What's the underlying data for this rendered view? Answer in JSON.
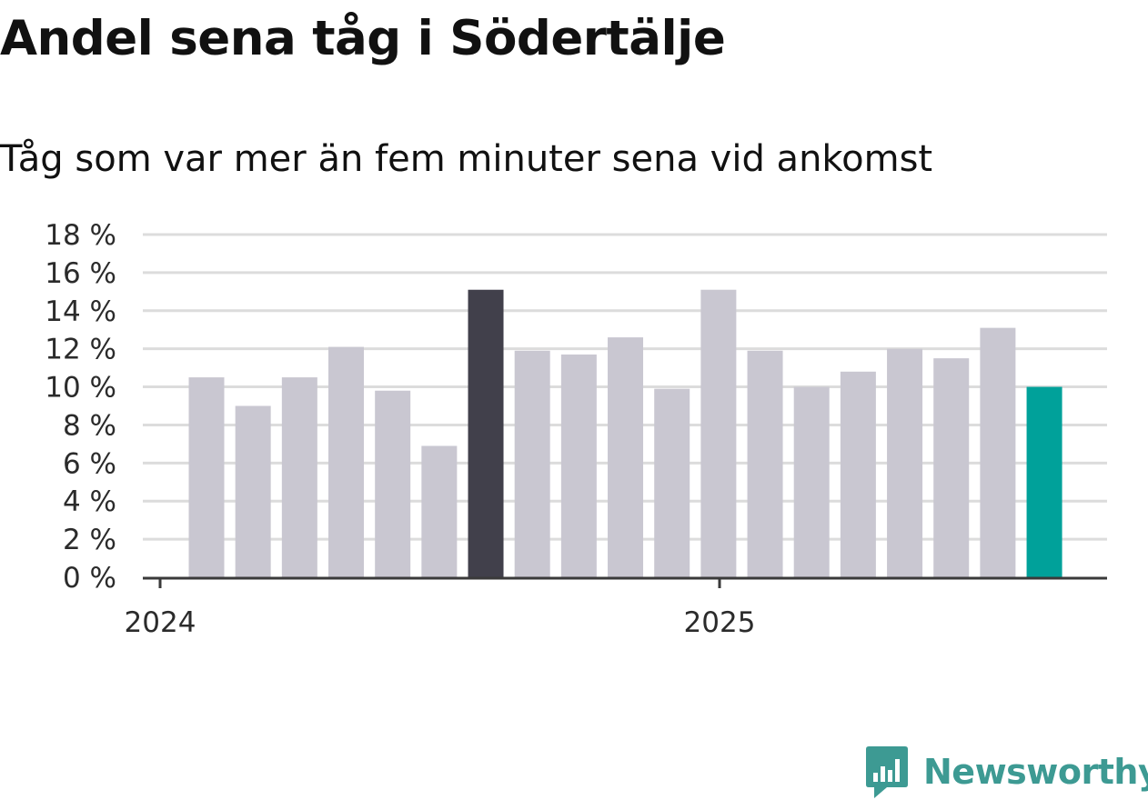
{
  "title": "Andel sena tåg i Södertälje",
  "subtitle": "Tåg som var mer än fem minuter sena vid ankomst",
  "brand": {
    "name": "Newsworthy",
    "icon": "newsworthy-logo-icon",
    "color": "#3d9a93"
  },
  "colors": {
    "bar_default": "#c9c7d1",
    "bar_highlight_max": "#41404b",
    "bar_latest": "#00a19a",
    "grid": "#dcdcdc",
    "axis": "#3a3a3a"
  },
  "chart_data": {
    "type": "bar",
    "title": "Andel sena tåg i Södertälje",
    "subtitle": "Tåg som var mer än fem minuter sena vid ankomst",
    "xlabel": "",
    "ylabel": "",
    "x_tick_labels": [
      "2024",
      "2025"
    ],
    "y_ticks": [
      0,
      2,
      4,
      6,
      8,
      10,
      12,
      14,
      16,
      18
    ],
    "y_tick_labels": [
      "0 %",
      "2 %",
      "4 %",
      "6 %",
      "8 %",
      "10 %",
      "12 %",
      "14 %",
      "16 %",
      "18 %"
    ],
    "ylim": [
      0,
      18
    ],
    "grid": true,
    "categories": [
      "2024-01",
      "2024-02",
      "2024-03",
      "2024-04",
      "2024-05",
      "2024-06",
      "2024-07",
      "2024-08",
      "2024-09",
      "2024-10",
      "2024-11",
      "2024-12",
      "2025-01",
      "2025-02",
      "2025-03",
      "2025-04",
      "2025-05",
      "2025-06",
      "2025-07"
    ],
    "values": [
      10.5,
      9.0,
      10.5,
      12.1,
      9.8,
      6.9,
      15.1,
      11.9,
      11.7,
      12.6,
      9.9,
      15.1,
      11.9,
      10.0,
      10.8,
      12.0,
      11.5,
      13.1,
      10.0
    ],
    "bar_roles": [
      "default",
      "default",
      "default",
      "default",
      "default",
      "default",
      "max",
      "default",
      "default",
      "default",
      "default",
      "default",
      "default",
      "default",
      "default",
      "default",
      "default",
      "default",
      "latest"
    ]
  }
}
